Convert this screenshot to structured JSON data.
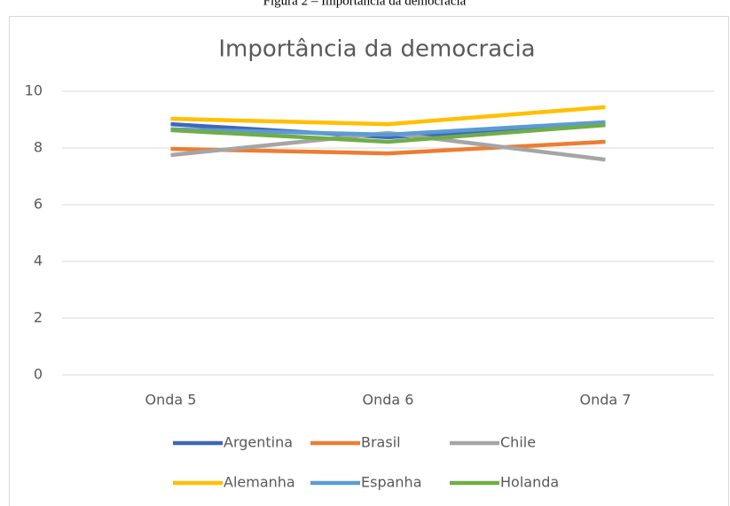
{
  "caption": "Figura 2 – Importância da democracia",
  "chart_data": {
    "type": "line",
    "title": "Importância da democracia",
    "categories": [
      "Onda 5",
      "Onda 6",
      "Onda 7"
    ],
    "series": [
      {
        "name": "Argentina",
        "color": "#3f67b8",
        "values": [
          8.84,
          8.38,
          8.84
        ]
      },
      {
        "name": "Brasil",
        "color": "#ed7d31",
        "values": [
          7.97,
          7.81,
          8.22
        ]
      },
      {
        "name": "Chile",
        "color": "#a5a5a5",
        "values": [
          7.75,
          8.53,
          7.59
        ]
      },
      {
        "name": "Alemanha",
        "color": "#ffc000",
        "values": [
          9.03,
          8.84,
          9.44
        ]
      },
      {
        "name": "Espanha",
        "color": "#5b9bd5",
        "values": [
          8.66,
          8.47,
          8.91
        ]
      },
      {
        "name": "Holanda",
        "color": "#70ad47",
        "values": [
          8.63,
          8.22,
          8.81
        ]
      }
    ],
    "ylim": [
      0,
      10
    ],
    "yticks": [
      0,
      2,
      4,
      6,
      8,
      10
    ],
    "grid": true,
    "legend": "bottom"
  }
}
